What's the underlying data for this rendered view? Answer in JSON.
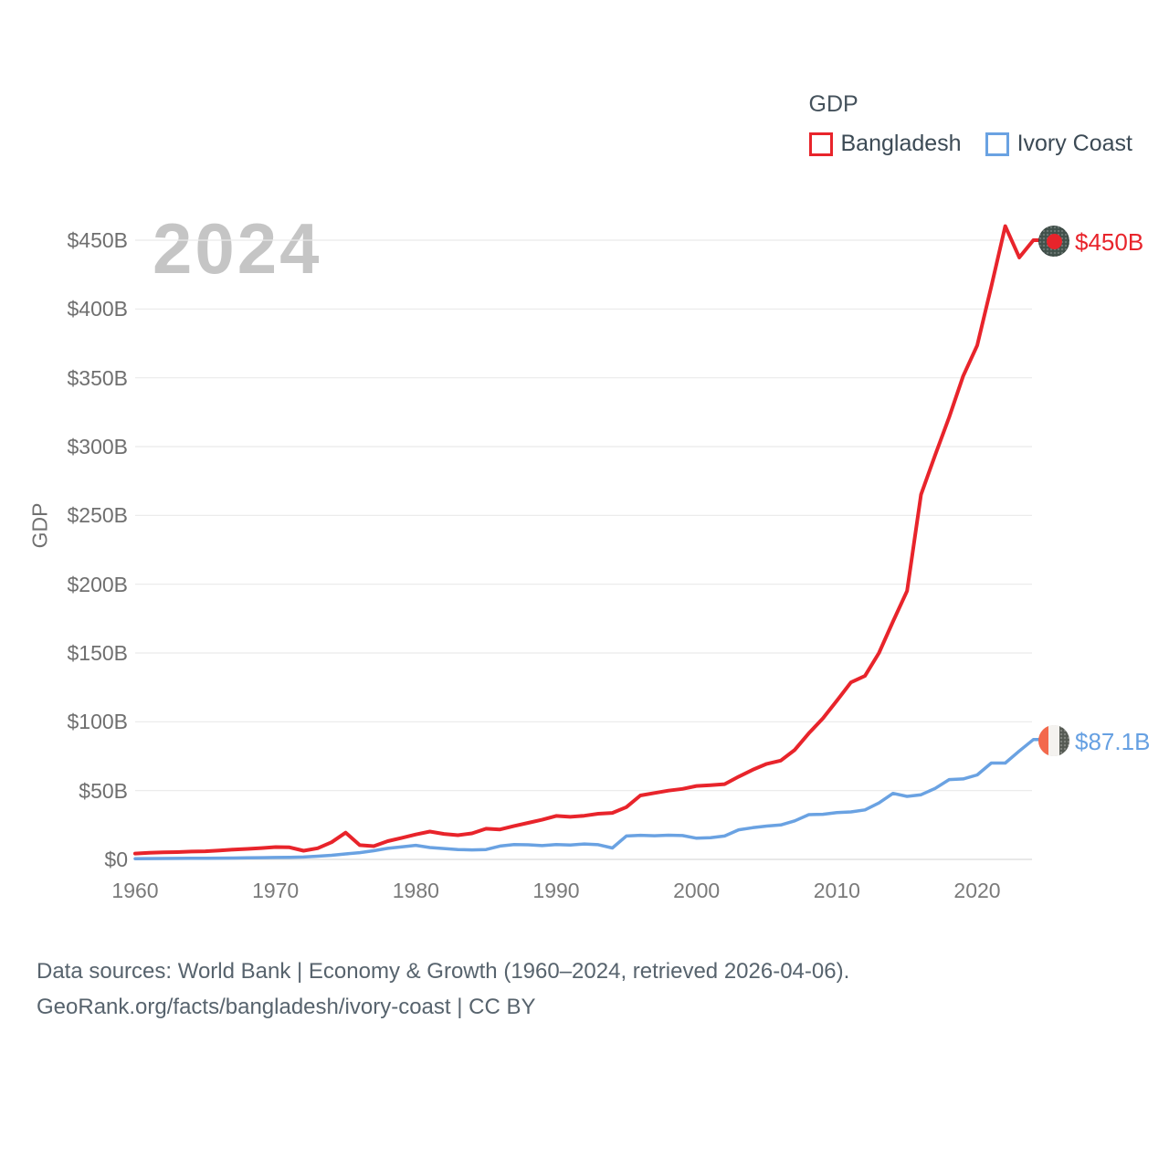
{
  "legend": {
    "title": "GDP",
    "items": [
      {
        "label": "Bangladesh",
        "color": "#e8242b"
      },
      {
        "label": "Ivory Coast",
        "color": "#6aa2e2"
      }
    ]
  },
  "watermark": "2024",
  "axis": {
    "y_title": "GDP"
  },
  "end_labels": {
    "bangladesh": "$450B",
    "ivory_coast": "$87.1B"
  },
  "footer": {
    "line1": "Data sources: World Bank | Economy & Growth (1960–2024, retrieved 2026-04-06).",
    "line2": "GeoRank.org/facts/bangladesh/ivory-coast | CC BY"
  },
  "chart_data": {
    "type": "line",
    "title": "GDP",
    "ylabel": "GDP",
    "xlabel": "",
    "grid": true,
    "legend_position": "top-right",
    "watermark": "2024",
    "ylim": [
      0,
      472
    ],
    "xlim": [
      1960,
      2024
    ],
    "yticks": [
      0,
      50,
      100,
      150,
      200,
      250,
      300,
      350,
      400,
      450
    ],
    "ytick_labels": [
      "$0",
      "$50B",
      "$100B",
      "$150B",
      "$200B",
      "$250B",
      "$300B",
      "$350B",
      "$400B",
      "$450B"
    ],
    "xticks": [
      1960,
      1970,
      1980,
      1990,
      2000,
      2010,
      2020
    ],
    "years": [
      1960,
      1961,
      1962,
      1963,
      1964,
      1965,
      1966,
      1967,
      1968,
      1969,
      1970,
      1971,
      1972,
      1973,
      1974,
      1975,
      1976,
      1977,
      1978,
      1979,
      1980,
      1981,
      1982,
      1983,
      1984,
      1985,
      1986,
      1987,
      1988,
      1989,
      1990,
      1991,
      1992,
      1993,
      1994,
      1995,
      1996,
      1997,
      1998,
      1999,
      2000,
      2001,
      2002,
      2003,
      2004,
      2005,
      2006,
      2007,
      2008,
      2009,
      2010,
      2011,
      2012,
      2013,
      2014,
      2015,
      2016,
      2017,
      2018,
      2019,
      2020,
      2021,
      2022,
      2023,
      2024
    ],
    "unit": "billion USD",
    "series": [
      {
        "name": "Bangladesh",
        "color": "#e8242b",
        "end_label": "$450B",
        "values": [
          4.27,
          4.81,
          5.08,
          5.32,
          5.71,
          5.91,
          6.44,
          7.18,
          7.62,
          8.21,
          8.99,
          8.75,
          6.29,
          8.09,
          12.46,
          19.45,
          10.34,
          9.64,
          13.26,
          15.65,
          18.14,
          20.25,
          18.53,
          17.62,
          18.92,
          22.28,
          21.77,
          24.3,
          26.58,
          28.78,
          31.6,
          30.96,
          31.71,
          33.17,
          33.77,
          37.94,
          46.44,
          48.24,
          49.98,
          51.27,
          53.37,
          53.99,
          54.72,
          60.16,
          65.11,
          69.44,
          71.82,
          79.61,
          91.63,
          102.48,
          115.28,
          128.64,
          133.36,
          149.99,
          172.89,
          195.08,
          265.24,
          293.75,
          321.38,
          351.24,
          373.56,
          416.26,
          460.2,
          437.42,
          450.0
        ]
      },
      {
        "name": "Ivory Coast",
        "color": "#6aa2e2",
        "end_label": "$87.1B",
        "values": [
          0.55,
          0.6,
          0.65,
          0.7,
          0.8,
          0.85,
          0.9,
          1.0,
          1.1,
          1.25,
          1.4,
          1.55,
          1.75,
          2.3,
          3.0,
          4.0,
          4.9,
          6.3,
          8.0,
          9.1,
          10.2,
          8.6,
          7.9,
          7.2,
          6.9,
          7.2,
          9.7,
          10.8,
          10.6,
          10.0,
          10.8,
          10.4,
          11.2,
          10.7,
          8.3,
          17.0,
          17.5,
          17.2,
          17.6,
          17.3,
          15.4,
          15.8,
          17.0,
          21.5,
          23.0,
          24.2,
          25.0,
          28.0,
          32.5,
          32.8,
          34.0,
          34.5,
          36.0,
          41.0,
          48.0,
          45.8,
          47.0,
          51.6,
          58.0,
          58.5,
          61.4,
          70.0,
          70.0,
          78.8,
          87.1
        ]
      }
    ]
  }
}
